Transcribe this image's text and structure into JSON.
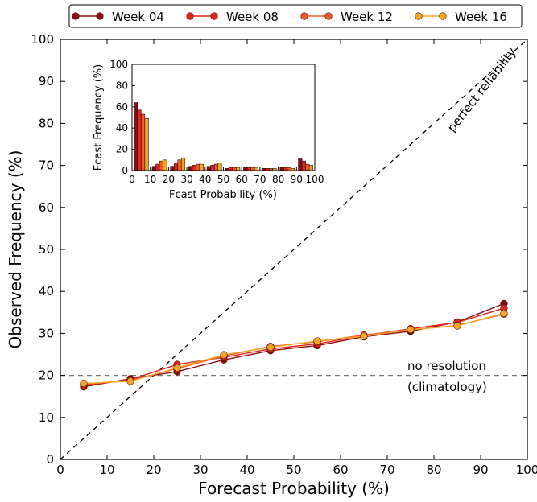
{
  "chart_data": [
    {
      "type": "line",
      "title": "",
      "xlabel": "Forecast Probability (%)",
      "ylabel": "Observed Frequency (%)",
      "xlim": [
        0,
        100
      ],
      "ylim": [
        0,
        100
      ],
      "xticks": [
        "0",
        "10",
        "20",
        "30",
        "40",
        "50",
        "60",
        "70",
        "80",
        "90",
        "100"
      ],
      "yticks": [
        "0",
        "10",
        "20",
        "30",
        "40",
        "50",
        "60",
        "70",
        "80",
        "90",
        "100"
      ],
      "grid": false,
      "legend_position": "top, outside plot",
      "x": [
        5,
        15,
        25,
        35,
        45,
        55,
        65,
        75,
        85,
        95
      ],
      "series": [
        {
          "name": "Week 04",
          "color": "#8b0d14",
          "values": [
            17.3,
            19.2,
            20.9,
            23.7,
            25.9,
            27.1,
            29.2,
            30.5,
            32.7,
            37.1
          ]
        },
        {
          "name": "Week 08",
          "color": "#e2231a",
          "values": [
            17.6,
            19.0,
            22.6,
            24.3,
            26.3,
            27.5,
            29.5,
            31.1,
            32.6,
            36.0
          ]
        },
        {
          "name": "Week 12",
          "color": "#f05a24",
          "values": [
            17.9,
            18.8,
            21.6,
            24.6,
            26.9,
            28.0,
            29.6,
            30.8,
            31.9,
            34.6
          ]
        },
        {
          "name": "Week 16",
          "color": "#f5a623",
          "values": [
            18.1,
            18.6,
            21.8,
            24.9,
            26.7,
            28.2,
            29.3,
            30.9,
            31.8,
            34.8
          ]
        }
      ],
      "reference_lines": [
        {
          "label": "perfect reliability",
          "from": [
            0,
            0
          ],
          "to": [
            100,
            100
          ],
          "style": "dashed",
          "color": "#000000"
        },
        {
          "label_line1": "no resolution",
          "label_line2": "(climatology)",
          "y": 20,
          "style": "dashed",
          "color": "#777777"
        }
      ]
    },
    {
      "type": "bar",
      "title": "",
      "xlabel": "Fcast Probability (%)",
      "ylabel": "Fcast Frequency (%)",
      "xlim": [
        0,
        100
      ],
      "ylim": [
        0,
        100
      ],
      "xticks": [
        "0",
        "10",
        "20",
        "30",
        "40",
        "50",
        "60",
        "70",
        "80",
        "90",
        "100"
      ],
      "yticks": [
        "0",
        "20",
        "40",
        "60",
        "80",
        "100"
      ],
      "bin_centers": [
        5,
        15,
        25,
        35,
        45,
        55,
        65,
        75,
        85,
        95
      ],
      "series": [
        {
          "name": "Week 04",
          "values": [
            64,
            4,
            4,
            4,
            4,
            2,
            3,
            2,
            3,
            11
          ]
        },
        {
          "name": "Week 08",
          "values": [
            57,
            6,
            7,
            5,
            5,
            3,
            3,
            2,
            3,
            9
          ]
        },
        {
          "name": "Week 12",
          "values": [
            53,
            9,
            10,
            6,
            6,
            3,
            3,
            2,
            3,
            6
          ]
        },
        {
          "name": "Week 16",
          "values": [
            49,
            10,
            12,
            6,
            7,
            3,
            3,
            2,
            2,
            5
          ]
        }
      ]
    }
  ]
}
